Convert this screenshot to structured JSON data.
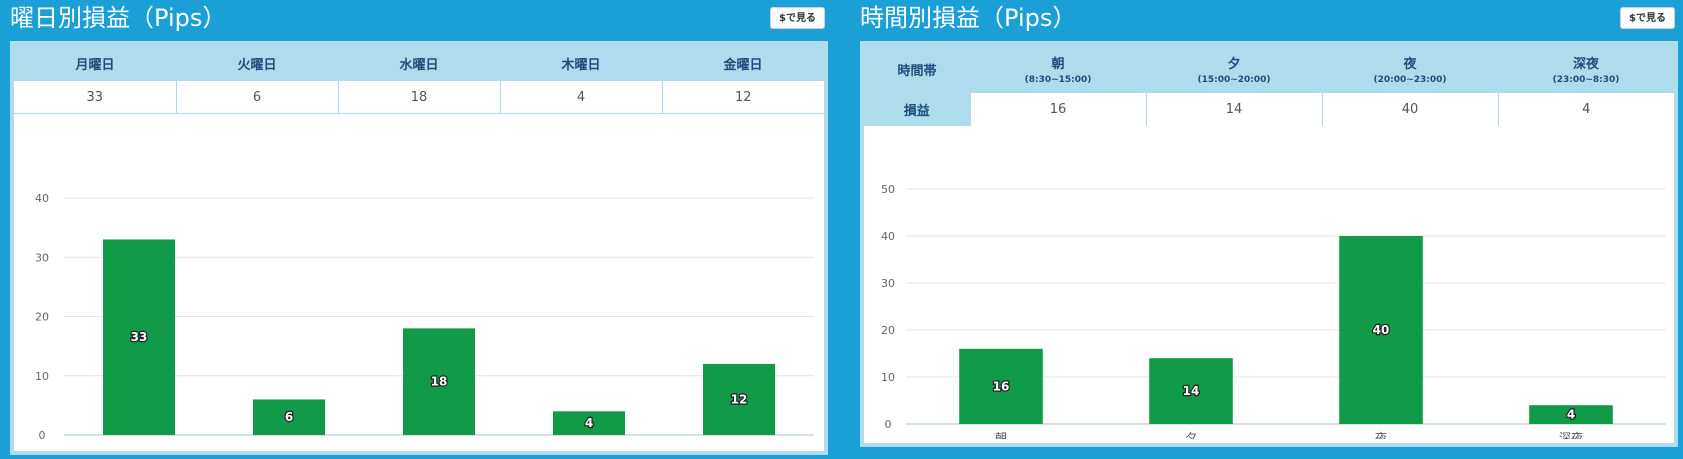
{
  "panels": [
    {
      "title": "曜日別損益（Pips）",
      "usd_button_label": "$で見る",
      "table": {
        "headers": [
          "月曜日",
          "火曜日",
          "水曜日",
          "木曜日",
          "金曜日"
        ],
        "values": [
          "33",
          "6",
          "18",
          "4",
          "12"
        ]
      }
    },
    {
      "title": "時間別損益（Pips）",
      "usd_button_label": "$で見る",
      "table": {
        "corner_label": "時間帯",
        "row_label": "損益",
        "headers": [
          {
            "name": "朝",
            "range": "(8:30~15:00)"
          },
          {
            "name": "夕",
            "range": "(15:00~20:00)"
          },
          {
            "name": "夜",
            "range": "(20:00~23:00)"
          },
          {
            "name": "深夜",
            "range": "(23:00~8:30)"
          }
        ],
        "values": [
          "16",
          "14",
          "40",
          "4"
        ]
      }
    }
  ],
  "chart_data": [
    {
      "type": "bar",
      "title": "曜日別損益（Pips）",
      "categories": [
        "月",
        "火",
        "水",
        "木",
        "金"
      ],
      "values": [
        33,
        6,
        18,
        4,
        12
      ],
      "ylim": [
        0,
        40
      ],
      "yticks": [
        0,
        10,
        20,
        30,
        40
      ],
      "data_labels": true,
      "grid": true,
      "bar_color": "#119b49"
    },
    {
      "type": "bar",
      "title": "時間別損益（Pips）",
      "categories": [
        "朝",
        "夕",
        "夜",
        "深夜"
      ],
      "values": [
        16,
        14,
        40,
        4
      ],
      "ylim": [
        0,
        50
      ],
      "yticks": [
        0,
        10,
        20,
        30,
        40,
        50
      ],
      "data_labels": true,
      "grid": true,
      "bar_color": "#119b49"
    }
  ]
}
